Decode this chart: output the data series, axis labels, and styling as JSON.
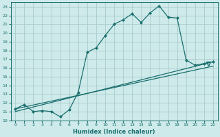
{
  "xlabel": "Humidex (Indice chaleur)",
  "bg_color": "#ceeaea",
  "grid_color": "#aacccc",
  "line_color": "#1a6e6e",
  "xlim": [
    -0.5,
    22.5
  ],
  "ylim": [
    10,
    23.5
  ],
  "xticks": [
    0,
    1,
    2,
    3,
    4,
    5,
    6,
    7,
    8,
    9,
    10,
    11,
    12,
    13,
    14,
    15,
    16,
    17,
    18,
    19,
    20,
    21,
    22
  ],
  "yticks": [
    10,
    11,
    12,
    13,
    14,
    15,
    16,
    17,
    18,
    19,
    20,
    21,
    22,
    23
  ],
  "main_x": [
    0,
    1,
    2,
    3,
    4,
    5,
    6,
    7,
    8,
    9,
    10,
    11,
    12,
    13,
    14,
    15,
    16,
    17,
    18,
    19,
    20,
    21,
    22
  ],
  "main_y": [
    11.3,
    11.8,
    11.0,
    11.1,
    11.0,
    10.4,
    11.2,
    13.2,
    17.8,
    18.3,
    19.7,
    21.0,
    21.5,
    22.2,
    21.2,
    22.3,
    23.1,
    21.8,
    21.7,
    16.9,
    16.3,
    16.5,
    16.7
  ],
  "line1_x": [
    0,
    22
  ],
  "line1_y": [
    11.3,
    16.2
  ],
  "line2_x": [
    0,
    22
  ],
  "line2_y": [
    11.0,
    16.7
  ],
  "tri_x": [
    21.5
  ],
  "tri_y": [
    16.5
  ]
}
